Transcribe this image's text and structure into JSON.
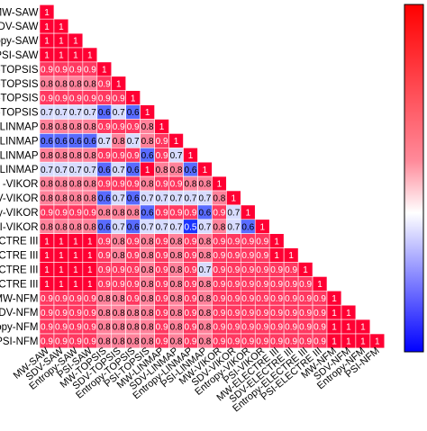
{
  "chart_data": {
    "type": "heatmap",
    "title": "",
    "layout": "lower-triangle correlation matrix",
    "row_labels": [
      "MW-SAW",
      "SDV-SAW",
      "Entropy-SAW",
      "PSI-SAW",
      "MW-TOPSIS",
      "SDV-TOPSIS",
      "Entropy-TOPSIS",
      "PSI-TOPSIS",
      "MW-LINMAP",
      "SDV-LINMAP",
      "Entropy-LINMAP",
      "PSI-LINMAP",
      "MW-VIKOR",
      "SDV-VIKOR",
      "Entropy-VIKOR",
      "PSI-VIKOR",
      "MW-ELECTRE III",
      "SDV-ELECTRE III",
      "Entropy-ELECTRE III",
      "PSI-ELECTRE III",
      "MW-NFM",
      "SDV-NFM",
      "Entropy-NFM",
      "PSI-NFM"
    ],
    "row_labels_visible": [
      "MW-SAW",
      "DV-SAW",
      "opy-SAW",
      "PSI-SAW",
      "-TOPSIS",
      "-TOPSIS",
      "-TOPSIS",
      "-TOPSIS",
      "-LINMAP",
      "-LINMAP",
      "-LINMAP",
      "-LINMAP",
      "-VIKOR",
      "V-VIKOR",
      "py-VIKOR",
      "SI-VIKOR",
      "CTRE III",
      "CTRE III",
      "CTRE III",
      "CTRE III",
      "MW-NFM",
      "DV-NFM",
      "opy-NFM",
      "PSI-NFM"
    ],
    "values": [
      [
        1
      ],
      [
        1,
        1
      ],
      [
        1,
        1,
        1
      ],
      [
        1,
        1,
        1,
        1
      ],
      [
        0.9,
        0.9,
        0.9,
        0.9,
        1
      ],
      [
        0.8,
        0.8,
        0.8,
        0.8,
        0.9,
        1
      ],
      [
        0.9,
        0.9,
        0.9,
        0.9,
        0.9,
        0.9,
        1
      ],
      [
        0.7,
        0.7,
        0.7,
        0.7,
        0.6,
        0.7,
        0.6,
        1
      ],
      [
        0.8,
        0.8,
        0.8,
        0.8,
        0.9,
        0.9,
        0.9,
        0.8,
        1
      ],
      [
        0.6,
        0.6,
        0.6,
        0.6,
        0.7,
        0.8,
        0.7,
        0.8,
        0.9,
        1
      ],
      [
        0.8,
        0.8,
        0.8,
        0.8,
        0.9,
        0.9,
        0.9,
        0.6,
        0.9,
        0.7,
        1
      ],
      [
        0.7,
        0.7,
        0.7,
        0.7,
        0.6,
        0.7,
        0.6,
        1,
        0.8,
        0.8,
        0.6,
        1
      ],
      [
        0.8,
        0.8,
        0.8,
        0.8,
        0.9,
        0.9,
        0.9,
        0.8,
        0.9,
        0.9,
        0.8,
        0.8,
        1
      ],
      [
        0.8,
        0.8,
        0.8,
        0.8,
        0.6,
        0.7,
        0.6,
        0.7,
        0.7,
        0.7,
        0.7,
        0.7,
        0.8,
        1
      ],
      [
        0.9,
        0.9,
        0.9,
        0.9,
        0.8,
        0.8,
        0.8,
        0.6,
        0.9,
        0.9,
        0.9,
        0.6,
        0.9,
        0.7,
        1
      ],
      [
        0.8,
        0.8,
        0.8,
        0.8,
        0.6,
        0.7,
        0.6,
        0.7,
        0.7,
        0.7,
        0.5,
        0.7,
        0.8,
        0.7,
        0.6,
        1
      ],
      [
        1,
        1,
        1,
        1,
        0.9,
        0.8,
        0.9,
        0.8,
        0.9,
        0.8,
        0.9,
        0.8,
        0.9,
        0.9,
        0.9,
        0.9,
        1
      ],
      [
        1,
        1,
        1,
        1,
        0.9,
        0.8,
        0.9,
        0.8,
        0.9,
        0.8,
        0.9,
        0.8,
        0.9,
        0.9,
        0.9,
        0.9,
        1,
        1
      ],
      [
        1,
        1,
        1,
        1,
        0.9,
        0.9,
        0.9,
        0.8,
        0.9,
        0.8,
        0.9,
        0.7,
        0.9,
        0.9,
        0.9,
        0.9,
        0.9,
        0.9,
        1
      ],
      [
        1,
        1,
        1,
        1,
        0.9,
        0.9,
        0.9,
        0.8,
        0.9,
        0.8,
        0.9,
        0.8,
        0.9,
        0.9,
        0.9,
        0.9,
        0.9,
        0.9,
        0.9,
        1
      ],
      [
        0.9,
        0.9,
        0.9,
        0.9,
        0.8,
        0.8,
        0.9,
        0.8,
        0.9,
        0.8,
        0.9,
        0.8,
        0.9,
        0.9,
        0.9,
        0.9,
        0.9,
        0.9,
        0.9,
        0.9,
        1
      ],
      [
        0.9,
        0.9,
        0.9,
        0.9,
        0.8,
        0.8,
        0.8,
        0.8,
        0.9,
        0.8,
        0.9,
        0.8,
        0.9,
        0.9,
        0.9,
        0.9,
        0.9,
        0.9,
        0.9,
        0.9,
        1,
        1
      ],
      [
        0.9,
        0.9,
        0.9,
        0.9,
        0.8,
        0.8,
        0.8,
        0.8,
        0.9,
        0.8,
        0.9,
        0.8,
        0.9,
        0.9,
        0.9,
        0.9,
        0.9,
        0.9,
        0.9,
        0.9,
        1,
        1,
        1
      ],
      [
        0.9,
        0.9,
        0.9,
        0.9,
        0.8,
        0.8,
        0.8,
        0.8,
        0.9,
        0.8,
        0.9,
        0.8,
        0.9,
        0.9,
        0.9,
        0.9,
        0.9,
        0.9,
        0.9,
        0.9,
        1,
        1,
        1,
        1
      ]
    ],
    "value_range": [
      0.5,
      1
    ],
    "colorscale": {
      "low": "#1a33ff",
      "mid": "#ffffff",
      "high": "#ff0033"
    },
    "colorbar": "right",
    "grid": false
  }
}
